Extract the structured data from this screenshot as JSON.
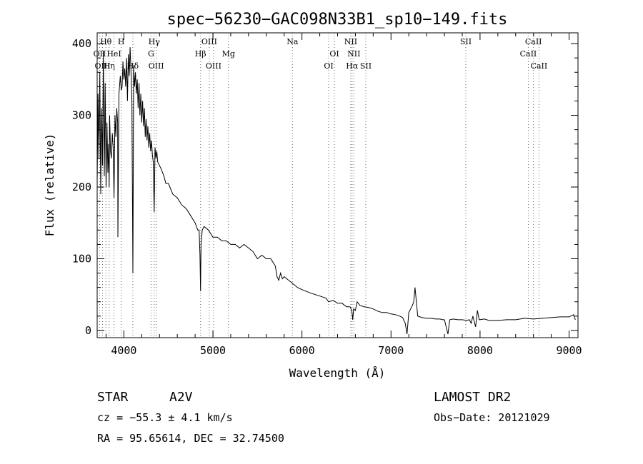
{
  "chart_data": {
    "type": "line",
    "title": "spec−56230−GAC098N33B1_sp10−149.fits",
    "xlabel": "Wavelength (Å)",
    "ylabel": "Flux (relative)",
    "xlim": [
      3700,
      9100
    ],
    "ylim": [
      -10,
      415
    ],
    "x_ticks": [
      4000,
      5000,
      6000,
      7000,
      8000,
      9000
    ],
    "y_ticks": [
      0,
      100,
      200,
      300,
      400
    ],
    "grid": false,
    "series": [
      {
        "x": [
          3700,
          3710,
          3720,
          3730,
          3740,
          3750,
          3760,
          3770,
          3780,
          3790,
          3800,
          3810,
          3820,
          3830,
          3835,
          3840,
          3850,
          3860,
          3870,
          3880,
          3889,
          3900,
          3910,
          3920,
          3930,
          3933,
          3945,
          3960,
          3970,
          3980,
          3990,
          4000,
          4010,
          4020,
          4030,
          4040,
          4050,
          4060,
          4070,
          4080,
          4090,
          4101,
          4110,
          4120,
          4130,
          4140,
          4150,
          4160,
          4170,
          4180,
          4190,
          4200,
          4210,
          4220,
          4230,
          4240,
          4250,
          4260,
          4270,
          4280,
          4290,
          4300,
          4310,
          4320,
          4330,
          4340,
          4350,
          4360,
          4370,
          4380,
          4400,
          4420,
          4450,
          4471,
          4500,
          4550,
          4600,
          4650,
          4700,
          4750,
          4800,
          4830,
          4845,
          4855,
          4861,
          4867,
          4880,
          4900,
          4950,
          5000,
          5050,
          5100,
          5150,
          5200,
          5250,
          5300,
          5350,
          5400,
          5450,
          5500,
          5550,
          5600,
          5650,
          5700,
          5720,
          5740,
          5760,
          5780,
          5800,
          5850,
          5900,
          5950,
          6000,
          6100,
          6200,
          6270,
          6300,
          6350,
          6400,
          6450,
          6500,
          6540,
          6560,
          6570,
          6580,
          6600,
          6620,
          6650,
          6700,
          6750,
          6800,
          6850,
          6900,
          6950,
          7000,
          7050,
          7100,
          7130,
          7160,
          7180,
          7200,
          7220,
          7240,
          7255,
          7270,
          7300,
          7350,
          7400,
          7450,
          7500,
          7550,
          7580,
          7600,
          7620,
          7640,
          7660,
          7700,
          7750,
          7800,
          7850,
          7880,
          7900,
          7920,
          7950,
          7970,
          7990,
          8050,
          8100,
          8200,
          8300,
          8400,
          8500,
          8600,
          8700,
          8800,
          8900,
          9000,
          9050,
          9070
        ],
        "y": [
          205,
          330,
          240,
          360,
          190,
          310,
          230,
          390,
          215,
          345,
          200,
          290,
          220,
          260,
          200,
          300,
          250,
          240,
          275,
          255,
          185,
          300,
          270,
          310,
          290,
          130,
          330,
          355,
          335,
          340,
          375,
          350,
          365,
          340,
          380,
          320,
          385,
          355,
          395,
          360,
          320,
          80,
          370,
          340,
          360,
          330,
          350,
          310,
          345,
          300,
          330,
          290,
          320,
          285,
          310,
          270,
          295,
          265,
          285,
          255,
          275,
          250,
          265,
          245,
          235,
          165,
          255,
          240,
          250,
          235,
          230,
          225,
          215,
          205,
          205,
          190,
          185,
          175,
          170,
          160,
          150,
          140,
          140,
          105,
          55,
          120,
          140,
          145,
          140,
          130,
          130,
          125,
          125,
          120,
          120,
          115,
          120,
          115,
          110,
          100,
          105,
          100,
          100,
          90,
          75,
          70,
          80,
          72,
          75,
          70,
          65,
          60,
          57,
          52,
          48,
          45,
          40,
          42,
          38,
          38,
          33,
          33,
          28,
          15,
          30,
          28,
          40,
          35,
          33,
          32,
          30,
          27,
          25,
          25,
          23,
          22,
          20,
          18,
          10,
          -5,
          25,
          30,
          35,
          40,
          60,
          20,
          18,
          17,
          17,
          16,
          16,
          15,
          15,
          5,
          -5,
          15,
          16,
          15,
          15,
          14,
          15,
          10,
          20,
          5,
          28,
          15,
          16,
          14,
          14,
          15,
          15,
          17,
          16,
          17,
          18,
          19,
          19,
          22,
          15
        ]
      }
    ],
    "lines": [
      {
        "label": "Hθ",
        "x": 3798,
        "row": 1
      },
      {
        "label": "OII",
        "x": 3727,
        "row": 2
      },
      {
        "label": "OIII",
        "x": 3760,
        "row": 3
      },
      {
        "label": "Hη",
        "x": 3835,
        "row": 3
      },
      {
        "label": "H",
        "x": 3970,
        "row": 1
      },
      {
        "label": "HeI",
        "x": 3889,
        "row": 2
      },
      {
        "label": "Hδ",
        "x": 4101,
        "row": 3
      },
      {
        "label": "Hγ",
        "x": 4340,
        "row": 1
      },
      {
        "label": "G",
        "x": 4305,
        "row": 2
      },
      {
        "label": "OIII",
        "x": 4363,
        "row": 3
      },
      {
        "label": "OIII",
        "x": 4959,
        "row": 1
      },
      {
        "label": "Hβ",
        "x": 4861,
        "row": 2
      },
      {
        "label": "Mg",
        "x": 5175,
        "row": 2
      },
      {
        "label": "OIII",
        "x": 5007,
        "row": 3
      },
      {
        "label": "Na",
        "x": 5893,
        "row": 1
      },
      {
        "label": "NII",
        "x": 6548,
        "row": 1
      },
      {
        "label": "OI",
        "x": 6364,
        "row": 2
      },
      {
        "label": "NII",
        "x": 6583,
        "row": 2
      },
      {
        "label": "OI",
        "x": 6300,
        "row": 3
      },
      {
        "label": "Hα",
        "x": 6563,
        "row": 3
      },
      {
        "label": "SII",
        "x": 6717,
        "row": 3
      },
      {
        "label": "SII",
        "x": 7840,
        "row": 1
      },
      {
        "label": "CaII",
        "x": 8600,
        "row": 1
      },
      {
        "label": "CaII",
        "x": 8542,
        "row": 2
      },
      {
        "label": "CaII",
        "x": 8662,
        "row": 3
      }
    ]
  },
  "info": {
    "class_label": "STAR",
    "subclass": "A2V",
    "cz_text": "cz = −55.3 ± 4.1 km/s",
    "coords_text": "RA =  95.65614, DEC =  32.74500",
    "survey": "LAMOST DR2",
    "obs_date": "Obs−Date: 20121029"
  }
}
